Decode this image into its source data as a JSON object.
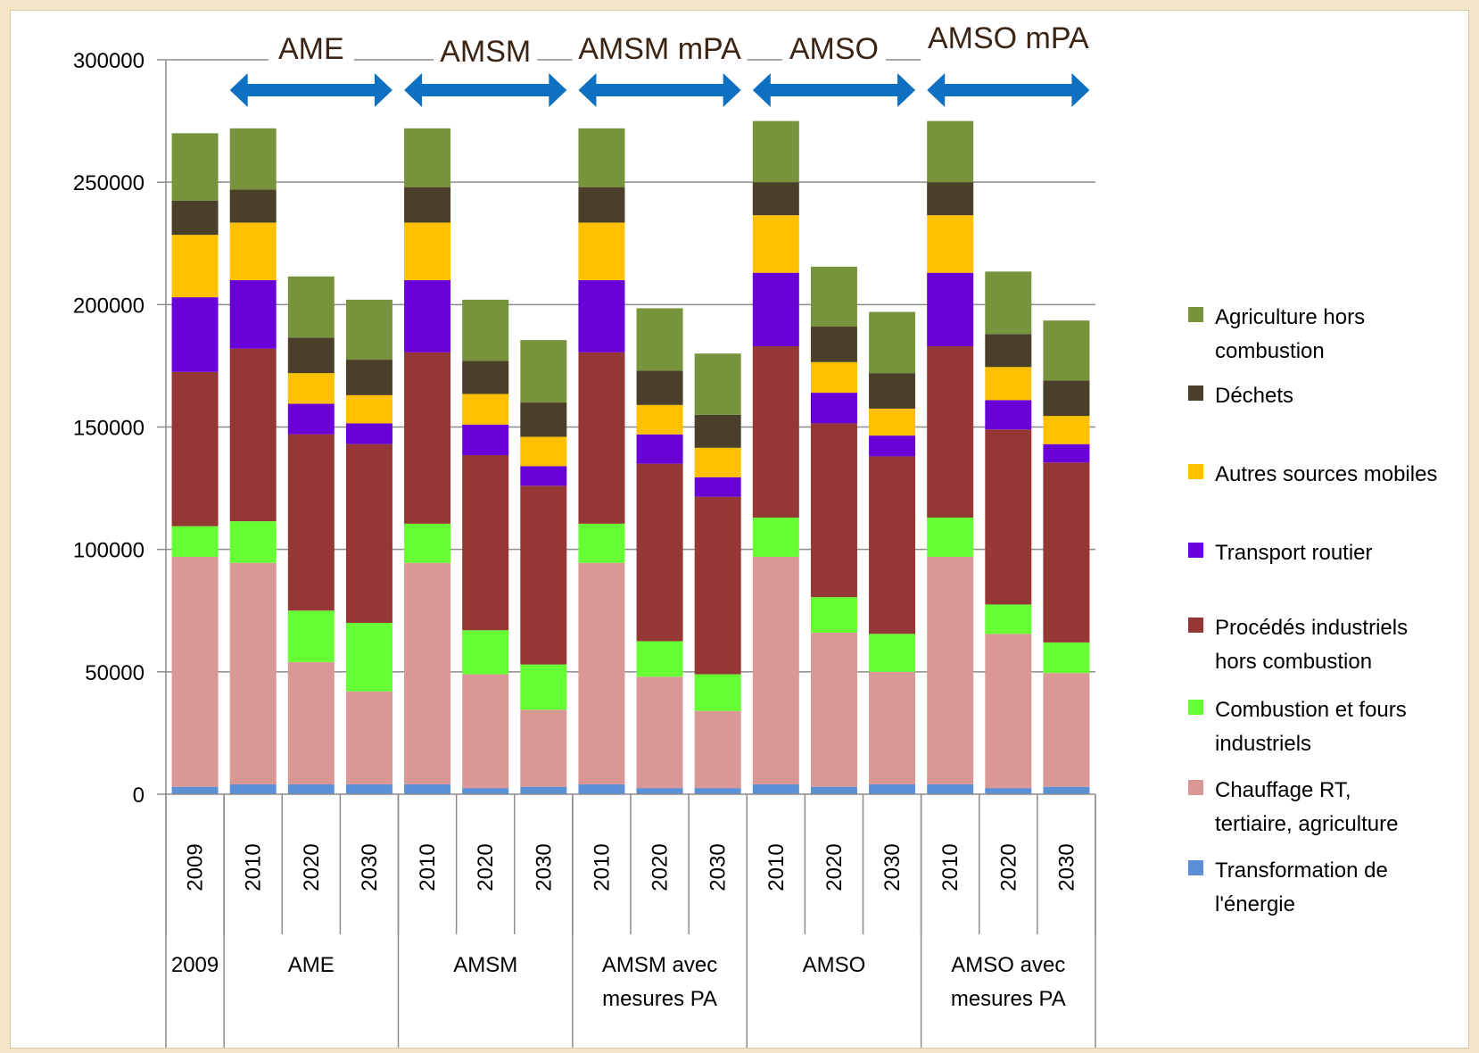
{
  "chart_data": {
    "type": "bar",
    "stacked": true,
    "ylim": [
      0,
      300000
    ],
    "yticks": [
      "0",
      "50000",
      "100000",
      "150000",
      "200000",
      "250000",
      "300000"
    ],
    "grid": true,
    "legend_position": "right",
    "categories": [
      "2009",
      "2010",
      "2020",
      "2030",
      "2010",
      "2020",
      "2030",
      "2010",
      "2020",
      "2030",
      "2010",
      "2020",
      "2030",
      "2010",
      "2020",
      "2030"
    ],
    "groups": [
      {
        "label": "2009",
        "count": 1
      },
      {
        "label": "AME",
        "count": 3
      },
      {
        "label": "AMSM",
        "count": 3
      },
      {
        "label": "AMSM avec mesures PA",
        "lines": [
          "AMSM avec",
          "mesures PA"
        ],
        "count": 3
      },
      {
        "label": "AMSO",
        "count": 3
      },
      {
        "label": "AMSO avec mesures PA",
        "lines": [
          "AMSO avec",
          "mesures PA"
        ],
        "count": 3
      }
    ],
    "scenario_banners": [
      {
        "label": "AME",
        "from_bar": 1,
        "to_bar": 3
      },
      {
        "label": "AMSM",
        "from_bar": 4,
        "to_bar": 6
      },
      {
        "label": "AMSM mPA",
        "from_bar": 7,
        "to_bar": 9
      },
      {
        "label": "AMSO",
        "from_bar": 10,
        "to_bar": 12
      },
      {
        "label": "AMSO mPA",
        "from_bar": 13,
        "to_bar": 15
      }
    ],
    "series": [
      {
        "name": "Transformation de l'énergie",
        "legend_lines": [
          "Transformation de",
          "l'énergie"
        ],
        "color": "#5b8fd6",
        "values": [
          3000,
          4000,
          4000,
          4000,
          4000,
          2500,
          3000,
          4000,
          2500,
          2500,
          4000,
          3000,
          4000,
          4000,
          2500,
          3000
        ]
      },
      {
        "name": "Chauffage RT, tertiaire, agriculture",
        "legend_lines": [
          "Chauffage RT,",
          "tertiaire, agriculture"
        ],
        "color": "#d99795",
        "values": [
          94000,
          90500,
          50000,
          38000,
          90500,
          46500,
          31500,
          90500,
          45500,
          31500,
          93000,
          63000,
          46000,
          93000,
          63000,
          46500
        ]
      },
      {
        "name": "Combustion et fours industriels",
        "legend_lines": [
          "Combustion  et fours",
          "industriels"
        ],
        "color": "#66ff33",
        "values": [
          12500,
          17000,
          21000,
          28000,
          16000,
          18000,
          18500,
          16000,
          14500,
          15000,
          16000,
          14500,
          15500,
          16000,
          12000,
          12500
        ]
      },
      {
        "name": "Procédés industriels hors combustion",
        "legend_lines": [
          "Procédés industriels",
          "hors combustion"
        ],
        "color": "#953735",
        "values": [
          63000,
          70500,
          72000,
          73000,
          70000,
          71500,
          73000,
          70000,
          72500,
          72500,
          70000,
          71000,
          72500,
          70000,
          71500,
          73500
        ]
      },
      {
        "name": "Transport routier",
        "legend_lines": [
          "Transport routier"
        ],
        "color": "#6a00d8",
        "values": [
          30500,
          28000,
          12500,
          8500,
          29500,
          12500,
          8000,
          29500,
          12000,
          8000,
          30000,
          12500,
          8500,
          30000,
          12000,
          7500
        ]
      },
      {
        "name": "Autres sources mobiles",
        "legend_lines": [
          "Autres sources mobiles"
        ],
        "color": "#ffc000",
        "values": [
          25500,
          23500,
          12500,
          11500,
          23500,
          12500,
          12000,
          23500,
          12000,
          12000,
          23500,
          12500,
          11000,
          23500,
          13500,
          11500
        ]
      },
      {
        "name": "Déchets",
        "legend_lines": [
          "Déchets"
        ],
        "color": "#4a3f28",
        "values": [
          14000,
          13500,
          14500,
          14500,
          14500,
          13500,
          14000,
          14500,
          14000,
          13500,
          13500,
          14500,
          14500,
          13500,
          13500,
          14500
        ]
      },
      {
        "name": "Agriculture hors combustion",
        "legend_lines": [
          "Agriculture hors",
          "combustion"
        ],
        "color": "#77933c",
        "values": [
          27500,
          25000,
          25000,
          24500,
          24000,
          25000,
          25500,
          24000,
          25500,
          25000,
          25000,
          24500,
          25000,
          25000,
          25500,
          24500
        ]
      }
    ]
  }
}
